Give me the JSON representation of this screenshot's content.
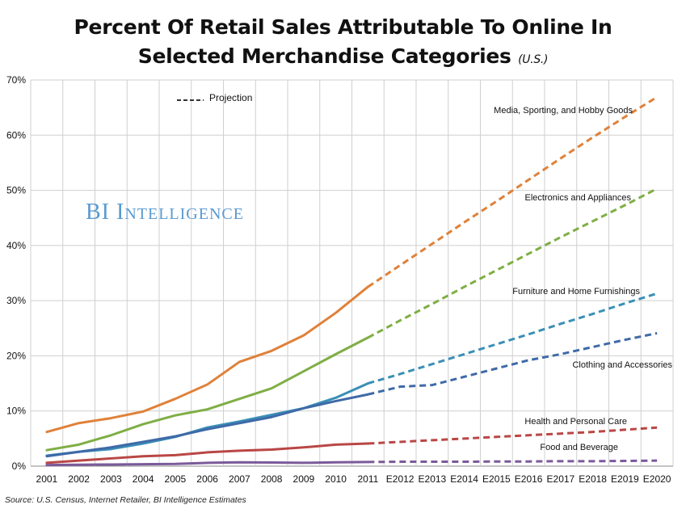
{
  "header": {
    "title_line1": "Percent Of Retail Sales Attributable To Online In",
    "title_line2": "Selected Merchandise Categories",
    "title_suffix": "(U.S.)"
  },
  "watermark": "BI Intelligence",
  "source": "Source: U.S. Census, Internet Retailer, BI Intelligence Estimates",
  "legend": {
    "projection_label": "Projection"
  },
  "chart_data": {
    "type": "line",
    "title": "Percent Of Retail Sales Attributable To Online In Selected Merchandise Categories (U.S.)",
    "categories": [
      "2001",
      "2002",
      "2003",
      "2004",
      "2005",
      "2006",
      "2007",
      "2008",
      "2009",
      "2010",
      "2011",
      "E2012",
      "E2013",
      "E2014",
      "E2015",
      "E2016",
      "E2017",
      "E2018",
      "E2019",
      "E2020"
    ],
    "actual_through_index": 10,
    "yticks": [
      "0%",
      "10%",
      "20%",
      "30%",
      "40%",
      "50%",
      "60%",
      "70%"
    ],
    "ylim": [
      0,
      70
    ],
    "grid": true,
    "series": [
      {
        "name": "Media, Sporting, and Hobby Goods",
        "color": "#e0813a",
        "values": [
          6.2,
          7.8,
          8.7,
          9.9,
          12.2,
          14.8,
          18.9,
          20.9,
          23.7,
          27.8,
          32.5,
          36.4,
          40.3,
          44.2,
          48.0,
          51.9,
          55.8,
          59.6,
          63.3,
          66.9
        ]
      },
      {
        "name": "Electronics and Appliances",
        "color": "#7fae45",
        "values": [
          2.9,
          3.9,
          5.6,
          7.6,
          9.2,
          10.3,
          12.2,
          14.1,
          17.2,
          20.3,
          23.3,
          26.4,
          29.4,
          32.5,
          35.5,
          38.5,
          41.5,
          44.4,
          47.3,
          50.3
        ]
      },
      {
        "name": "Furniture and Home Furnishings",
        "color": "#3a8fb7",
        "values": [
          1.9,
          2.6,
          3.1,
          4.1,
          5.3,
          7.0,
          8.1,
          9.3,
          10.5,
          12.4,
          15.0,
          16.7,
          18.5,
          20.3,
          22.1,
          23.9,
          25.8,
          27.6,
          29.5,
          31.3
        ]
      },
      {
        "name": "Clothing and Accessories",
        "color": "#3f6aa8",
        "values": [
          1.8,
          2.6,
          3.4,
          4.4,
          5.4,
          6.7,
          7.8,
          8.9,
          10.5,
          11.8,
          13.0,
          14.4,
          14.7,
          16.2,
          17.7,
          19.2,
          20.3,
          21.6,
          22.9,
          24.1
        ]
      },
      {
        "name": "Health and Personal Care",
        "color": "#b94745",
        "values": [
          0.6,
          1.0,
          1.4,
          1.8,
          2.0,
          2.5,
          2.8,
          3.0,
          3.4,
          3.9,
          4.1,
          4.4,
          4.7,
          5.0,
          5.3,
          5.6,
          5.9,
          6.2,
          6.6,
          7.0
        ]
      },
      {
        "name": "Food and Beverage",
        "color": "#7b5a9a",
        "values": [
          0.2,
          0.25,
          0.3,
          0.35,
          0.4,
          0.6,
          0.7,
          0.65,
          0.6,
          0.7,
          0.75,
          0.8,
          0.8,
          0.8,
          0.85,
          0.85,
          0.9,
          0.9,
          0.95,
          1.0
        ]
      }
    ]
  }
}
